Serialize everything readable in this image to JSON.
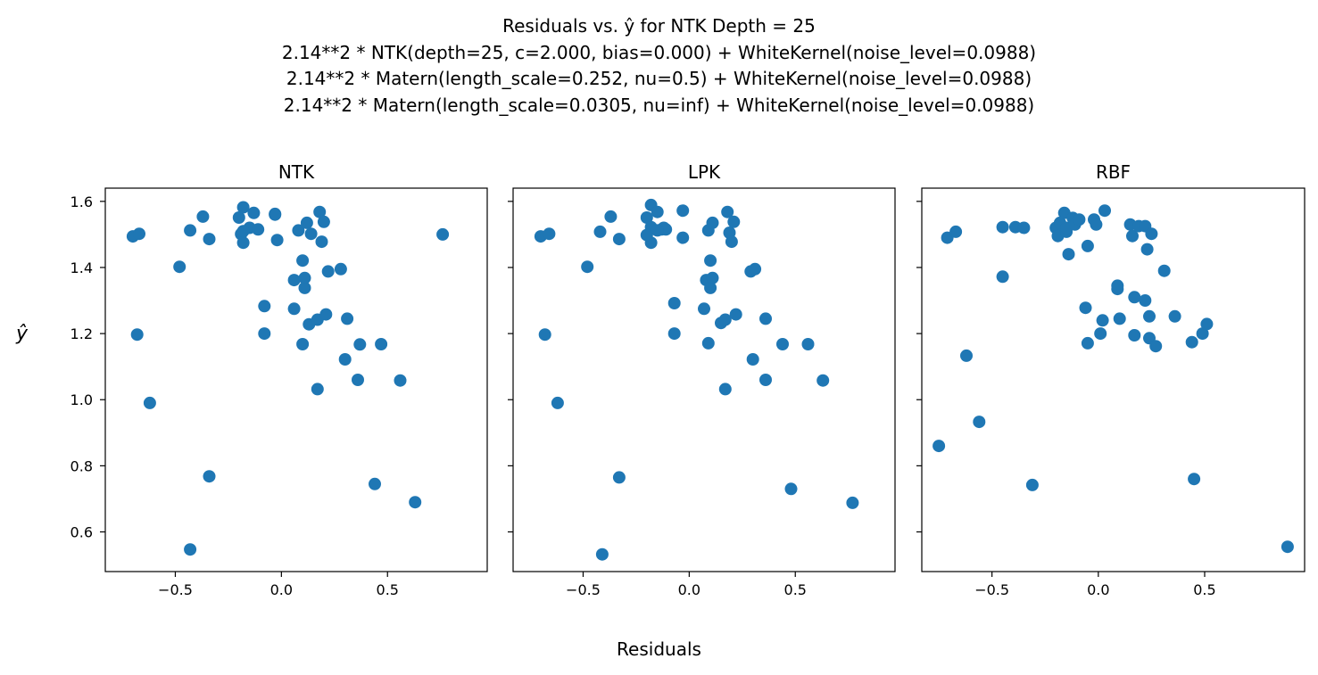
{
  "figure": {
    "title_lines": [
      "Residuals vs. ŷ for NTK Depth = 25",
      "2.14**2 * NTK(depth=25, c=2.000, bias=0.000) + WhiteKernel(noise_level=0.0988)",
      "2.14**2 * Matern(length_scale=0.252, nu=0.5) + WhiteKernel(noise_level=0.0988)",
      "2.14**2 * Matern(length_scale=0.0305, nu=inf) + WhiteKernel(noise_level=0.0988)"
    ],
    "xlabel": "Residuals",
    "ylabel": "ŷ",
    "marker_color": "#1f77b4"
  },
  "chart_data": [
    {
      "type": "scatter",
      "title": "NTK",
      "xlim": [
        -0.83,
        0.97
      ],
      "ylim": [
        0.48,
        1.64
      ],
      "xticks": [
        -0.5,
        0.0,
        0.5
      ],
      "xtick_labels": [
        "−0.5",
        "0.0",
        "0.5"
      ],
      "yticks": [
        0.6,
        0.8,
        1.0,
        1.2,
        1.4,
        1.6
      ],
      "ytick_labels": [
        "0.6",
        "0.8",
        "1.0",
        "1.2",
        "1.4",
        "1.6"
      ],
      "x": [
        -0.7,
        -0.67,
        -0.68,
        -0.62,
        -0.48,
        -0.43,
        -0.37,
        -0.34,
        -0.34,
        -0.43,
        -0.2,
        -0.19,
        -0.18,
        -0.18,
        -0.15,
        -0.13,
        -0.11,
        -0.08,
        -0.08,
        -0.03,
        -0.02,
        -0.03,
        0.06,
        0.06,
        0.08,
        0.1,
        0.1,
        0.11,
        0.11,
        0.12,
        0.13,
        0.14,
        0.17,
        0.17,
        0.18,
        0.19,
        0.2,
        0.21,
        0.22,
        0.28,
        0.3,
        0.31,
        0.36,
        0.37,
        0.44,
        0.47,
        0.56,
        0.63,
        0.76,
        -0.18
      ],
      "y": [
        1.494,
        1.502,
        1.197,
        0.99,
        1.402,
        1.512,
        1.554,
        1.486,
        0.768,
        0.547,
        1.551,
        1.501,
        1.582,
        1.475,
        1.52,
        1.565,
        1.515,
        1.283,
        1.2,
        1.56,
        1.483,
        1.562,
        1.362,
        1.275,
        1.512,
        1.168,
        1.421,
        1.338,
        1.368,
        1.535,
        1.228,
        1.502,
        1.032,
        1.242,
        1.568,
        1.478,
        1.538,
        1.258,
        1.388,
        1.395,
        1.122,
        1.245,
        1.06,
        1.167,
        0.745,
        1.168,
        1.058,
        0.69,
        1.5,
        1.51
      ]
    },
    {
      "type": "scatter",
      "title": "LPK",
      "xlim": [
        -0.83,
        0.97
      ],
      "ylim": [
        0.48,
        1.64
      ],
      "xticks": [
        -0.5,
        0.0,
        0.5
      ],
      "xtick_labels": [
        "−0.5",
        "0.0",
        "0.5"
      ],
      "yticks": [
        0.6,
        0.8,
        1.0,
        1.2,
        1.4,
        1.6
      ],
      "ytick_labels": [],
      "x": [
        -0.7,
        -0.66,
        -0.68,
        -0.62,
        -0.48,
        -0.42,
        -0.37,
        -0.33,
        -0.33,
        -0.41,
        -0.2,
        -0.18,
        -0.18,
        -0.18,
        -0.15,
        -0.13,
        -0.11,
        -0.07,
        -0.07,
        -0.03,
        -0.03,
        0.08,
        0.07,
        0.09,
        0.09,
        0.1,
        0.1,
        0.11,
        0.11,
        0.15,
        0.17,
        0.17,
        0.18,
        0.19,
        0.2,
        0.21,
        0.22,
        0.29,
        0.31,
        0.3,
        0.36,
        0.36,
        0.44,
        0.48,
        0.56,
        0.63,
        0.77,
        -0.2,
        -0.12,
        -0.15
      ],
      "y": [
        1.494,
        1.502,
        1.197,
        0.99,
        1.402,
        1.508,
        1.554,
        1.486,
        0.765,
        0.532,
        1.551,
        1.589,
        1.475,
        1.522,
        1.568,
        1.515,
        1.515,
        1.292,
        1.2,
        1.572,
        1.49,
        1.362,
        1.275,
        1.512,
        1.171,
        1.421,
        1.338,
        1.368,
        1.535,
        1.232,
        1.032,
        1.242,
        1.568,
        1.505,
        1.478,
        1.538,
        1.258,
        1.388,
        1.395,
        1.122,
        1.245,
        1.06,
        1.168,
        0.73,
        1.168,
        1.058,
        0.688,
        1.498,
        1.52,
        1.512
      ]
    },
    {
      "type": "scatter",
      "title": "RBF",
      "xlim": [
        -0.83,
        0.97
      ],
      "ylim": [
        0.48,
        1.64
      ],
      "xticks": [
        -0.5,
        0.0,
        0.5
      ],
      "xtick_labels": [
        "−0.5",
        "0.0",
        "0.5"
      ],
      "yticks": [
        0.6,
        0.8,
        1.0,
        1.2,
        1.4,
        1.6
      ],
      "ytick_labels": [],
      "x": [
        -0.75,
        -0.71,
        -0.67,
        -0.62,
        -0.56,
        -0.45,
        -0.45,
        -0.39,
        -0.35,
        -0.31,
        -0.2,
        -0.19,
        -0.18,
        -0.16,
        -0.15,
        -0.15,
        -0.14,
        -0.12,
        -0.11,
        -0.09,
        -0.06,
        -0.05,
        -0.05,
        -0.02,
        -0.01,
        0.01,
        0.02,
        0.03,
        0.09,
        0.09,
        0.1,
        0.15,
        0.16,
        0.17,
        0.17,
        0.19,
        0.22,
        0.23,
        0.22,
        0.24,
        0.24,
        0.25,
        0.27,
        0.31,
        0.36,
        0.44,
        0.45,
        0.49,
        0.51,
        0.89
      ],
      "y": [
        0.86,
        1.49,
        1.508,
        1.133,
        0.933,
        1.522,
        1.372,
        1.522,
        1.52,
        0.742,
        1.52,
        1.495,
        1.535,
        1.565,
        1.508,
        1.52,
        1.44,
        1.55,
        1.53,
        1.545,
        1.278,
        1.465,
        1.171,
        1.545,
        1.53,
        1.2,
        1.24,
        1.572,
        1.335,
        1.345,
        1.245,
        1.53,
        1.495,
        1.31,
        1.195,
        1.525,
        1.525,
        1.455,
        1.3,
        1.252,
        1.186,
        1.502,
        1.162,
        1.39,
        1.252,
        1.174,
        0.76,
        1.2,
        1.229,
        0.555
      ]
    }
  ]
}
